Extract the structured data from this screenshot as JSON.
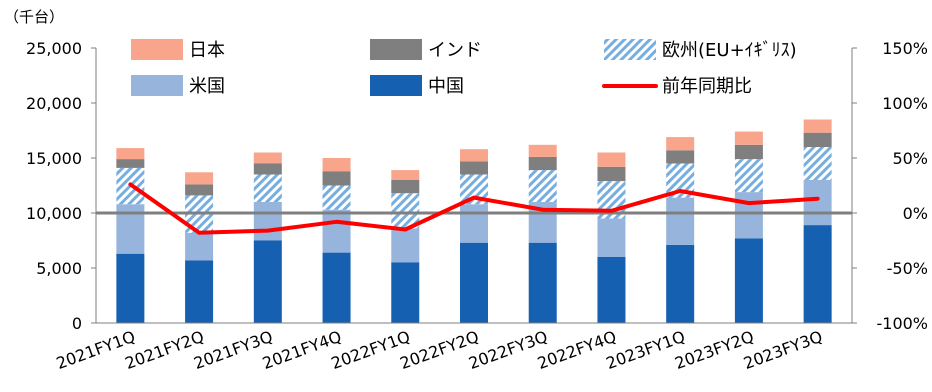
{
  "chart_data": {
    "type": "bar",
    "stacked": true,
    "unit_label": "（千台）",
    "categories": [
      "2021FY1Q",
      "2021FY2Q",
      "2021FY3Q",
      "2021FY4Q",
      "2022FY1Q",
      "2022FY2Q",
      "2022FY3Q",
      "2022FY4Q",
      "2023FY1Q",
      "2023FY2Q",
      "2023FY3Q"
    ],
    "series": [
      {
        "name": "中国",
        "color": "#1560b0",
        "pattern": "solid",
        "values": [
          6300,
          5700,
          7500,
          6400,
          5500,
          7300,
          7300,
          6000,
          7100,
          7700,
          8900
        ]
      },
      {
        "name": "米国",
        "color": "#97b5dc",
        "pattern": "solid",
        "values": [
          4500,
          2500,
          3500,
          3900,
          3100,
          3500,
          3700,
          3500,
          4300,
          4200,
          4100
        ]
      },
      {
        "name": "欧州(EU+ｲｷﾞﾘｽ)",
        "color": "#77aee0",
        "pattern": "hatch",
        "values": [
          3300,
          3400,
          2500,
          2200,
          3200,
          2700,
          2900,
          3400,
          3100,
          3000,
          3000
        ]
      },
      {
        "name": "インド",
        "color": "#7f7f7f",
        "pattern": "solid",
        "values": [
          800,
          1000,
          1000,
          1300,
          1200,
          1200,
          1200,
          1300,
          1200,
          1300,
          1300
        ]
      },
      {
        "name": "日本",
        "color": "#f8a58b",
        "pattern": "solid",
        "values": [
          1000,
          1100,
          1000,
          1200,
          900,
          1100,
          1100,
          1300,
          1200,
          1200,
          1200
        ]
      }
    ],
    "line_series": {
      "name": "前年同期比",
      "color": "#ff0000",
      "axis": "right",
      "values": [
        26,
        -18,
        -16,
        -8,
        -15,
        14,
        3,
        2,
        20,
        9,
        13
      ]
    },
    "left_axis": {
      "ylim": [
        0,
        25000
      ],
      "ticks": [
        "0",
        "5,000",
        "10,000",
        "15,000",
        "20,000",
        "25,000"
      ],
      "tick_values": [
        0,
        5000,
        10000,
        15000,
        20000,
        25000
      ]
    },
    "right_axis": {
      "ylim": [
        -100,
        150
      ],
      "ticks": [
        "-100%",
        "-50%",
        "0%",
        "50%",
        "100%",
        "150%"
      ],
      "tick_values": [
        -100,
        -50,
        0,
        50,
        100,
        150
      ]
    },
    "legend": {
      "placement": "top",
      "items": [
        {
          "label": "日本",
          "color": "#f8a58b",
          "kind": "box"
        },
        {
          "label": "インド",
          "color": "#7f7f7f",
          "kind": "box"
        },
        {
          "label": "欧州(EU+ｲｷﾞﾘｽ)",
          "color": "#77aee0",
          "kind": "hatch"
        },
        {
          "label": "米国",
          "color": "#97b5dc",
          "kind": "box"
        },
        {
          "label": "中国",
          "color": "#1560b0",
          "kind": "box"
        },
        {
          "label": "前年同期比",
          "color": "#ff0000",
          "kind": "line"
        }
      ]
    }
  }
}
